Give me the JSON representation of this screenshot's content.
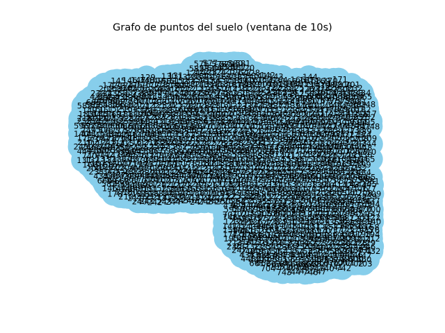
{
  "chart_data": {
    "type": "graph",
    "title": "Grafo de puntos del suelo (ventana de 10s)",
    "node_color": "#87ceeb",
    "label_color": "#000000",
    "edges_visible": false,
    "axes_visible": false,
    "visible_node_labels": [
      "576",
      "577",
      "578",
      "579",
      "580",
      "581",
      "582",
      "583",
      "584",
      "585",
      "586",
      "587",
      "120",
      "121",
      "122",
      "123",
      "124",
      "125",
      "126",
      "127",
      "128",
      "129",
      "130",
      "131",
      "132",
      "133",
      "134",
      "135",
      "136",
      "137",
      "138",
      "139",
      "140",
      "141",
      "142",
      "143",
      "144",
      "145",
      "146",
      "147",
      "148",
      "149",
      "150",
      "151",
      "152",
      "153",
      "154",
      "155",
      "156",
      "157",
      "158",
      "159",
      "160",
      "161",
      "162",
      "163",
      "164",
      "165",
      "166",
      "167",
      "168",
      "169",
      "170",
      "171",
      "172",
      "173",
      "174",
      "175",
      "176",
      "177",
      "178",
      "179",
      "180",
      "181",
      "182",
      "183",
      "184",
      "185",
      "186",
      "187",
      "188",
      "189",
      "190",
      "191",
      "192",
      "193",
      "194",
      "195",
      "196",
      "197",
      "198",
      "199",
      "200",
      "201",
      "202",
      "203",
      "204",
      "205",
      "206",
      "207",
      "208",
      "209",
      "210",
      "211",
      "212",
      "213",
      "214",
      "215",
      "216",
      "217",
      "218",
      "219",
      "220",
      "221",
      "222",
      "223",
      "224",
      "225",
      "226",
      "227",
      "228",
      "229",
      "230",
      "231",
      "232",
      "233",
      "234",
      "235",
      "236",
      "237",
      "238",
      "239",
      "240",
      "241",
      "242",
      "243",
      "244",
      "245",
      "246",
      "247",
      "248",
      "249",
      "250",
      "251",
      "252",
      "253",
      "254",
      "255",
      "256",
      "257",
      "258",
      "259",
      "260",
      "430",
      "431",
      "432",
      "433",
      "434",
      "435",
      "436",
      "437",
      "438",
      "439",
      "440",
      "441",
      "442",
      "443",
      "444",
      "445",
      "446",
      "447",
      "448",
      "449",
      "450",
      "590",
      "591",
      "592",
      "593",
      "594",
      "595",
      "596",
      "597",
      "598",
      "599",
      "600",
      "660",
      "661",
      "662",
      "663",
      "664",
      "665",
      "666",
      "667",
      "668",
      "669",
      "670",
      "700",
      "701",
      "702",
      "703",
      "704",
      "705",
      "706",
      "707",
      "708",
      "709",
      "710",
      "740",
      "741",
      "742",
      "743",
      "744",
      "745",
      "746",
      "747",
      "748",
      "749",
      "750"
    ]
  }
}
